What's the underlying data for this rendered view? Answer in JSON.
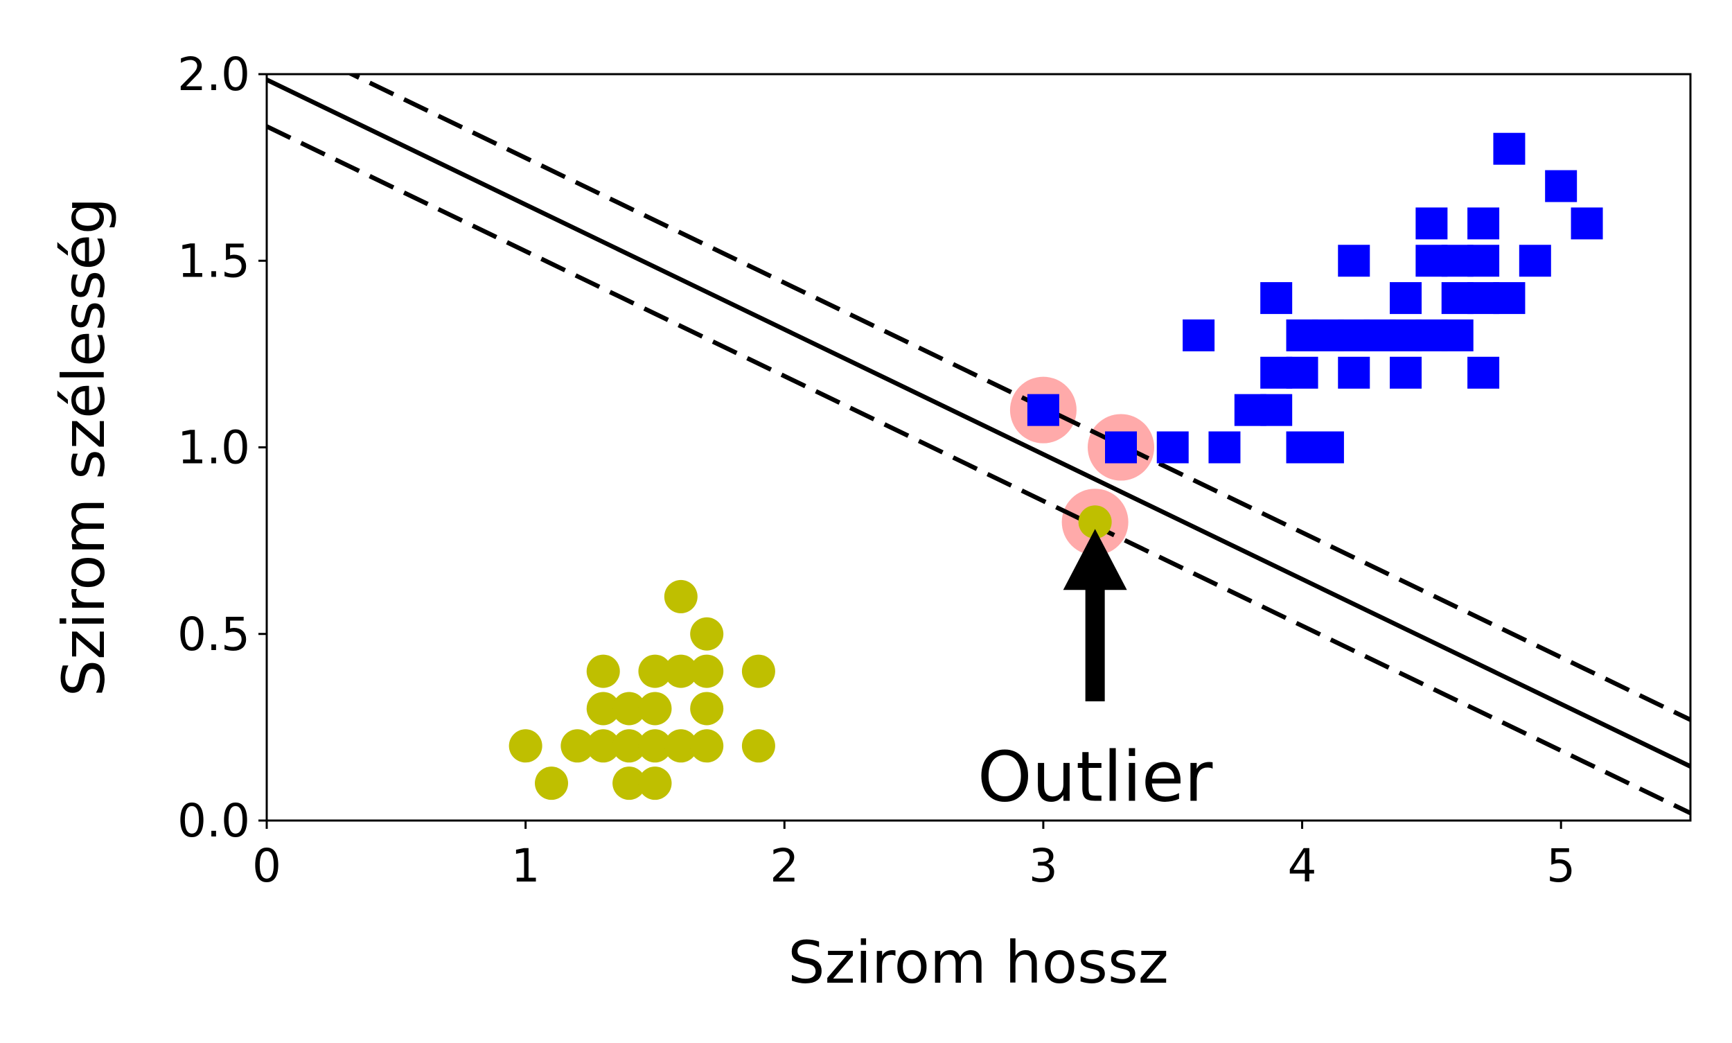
{
  "chart_data": {
    "type": "scatter",
    "xlabel": "Szirom hossz",
    "ylabel": "Szirom szélesség",
    "xlim": [
      0,
      5.5
    ],
    "ylim": [
      0,
      2.0
    ],
    "x_ticks": [
      {
        "value": 0,
        "label": "0"
      },
      {
        "value": 1,
        "label": "1"
      },
      {
        "value": 2,
        "label": "2"
      },
      {
        "value": 3,
        "label": "3"
      },
      {
        "value": 4,
        "label": "4"
      },
      {
        "value": 5,
        "label": "5"
      }
    ],
    "y_ticks": [
      {
        "value": 0.0,
        "label": "0.0"
      },
      {
        "value": 0.5,
        "label": "0.5"
      },
      {
        "value": 1.0,
        "label": "1.0"
      },
      {
        "value": 1.5,
        "label": "1.5"
      },
      {
        "value": 2.0,
        "label": "2.0"
      }
    ],
    "grid": false,
    "series": [
      {
        "marker": "circle",
        "color": "#bfbf00",
        "points": [
          [
            1.0,
            0.2
          ],
          [
            1.1,
            0.1
          ],
          [
            1.2,
            0.2
          ],
          [
            1.3,
            0.2
          ],
          [
            1.3,
            0.3
          ],
          [
            1.3,
            0.4
          ],
          [
            1.4,
            0.1
          ],
          [
            1.4,
            0.2
          ],
          [
            1.4,
            0.3
          ],
          [
            1.5,
            0.1
          ],
          [
            1.5,
            0.2
          ],
          [
            1.5,
            0.3
          ],
          [
            1.5,
            0.4
          ],
          [
            1.6,
            0.2
          ],
          [
            1.6,
            0.4
          ],
          [
            1.6,
            0.6
          ],
          [
            1.7,
            0.2
          ],
          [
            1.7,
            0.3
          ],
          [
            1.7,
            0.4
          ],
          [
            1.7,
            0.5
          ],
          [
            1.9,
            0.2
          ],
          [
            1.9,
            0.4
          ],
          [
            3.2,
            0.8
          ]
        ]
      },
      {
        "marker": "square",
        "color": "#0000ff",
        "points": [
          [
            3.0,
            1.1
          ],
          [
            3.3,
            1.0
          ],
          [
            3.5,
            1.0
          ],
          [
            3.6,
            1.3
          ],
          [
            3.7,
            1.0
          ],
          [
            3.8,
            1.1
          ],
          [
            3.9,
            1.1
          ],
          [
            3.9,
            1.2
          ],
          [
            3.9,
            1.4
          ],
          [
            4.0,
            1.0
          ],
          [
            4.0,
            1.2
          ],
          [
            4.0,
            1.3
          ],
          [
            4.1,
            1.0
          ],
          [
            4.1,
            1.3
          ],
          [
            4.2,
            1.2
          ],
          [
            4.2,
            1.3
          ],
          [
            4.2,
            1.5
          ],
          [
            4.3,
            1.3
          ],
          [
            4.4,
            1.2
          ],
          [
            4.4,
            1.3
          ],
          [
            4.4,
            1.4
          ],
          [
            4.5,
            1.3
          ],
          [
            4.5,
            1.5
          ],
          [
            4.5,
            1.6
          ],
          [
            4.6,
            1.3
          ],
          [
            4.6,
            1.4
          ],
          [
            4.6,
            1.5
          ],
          [
            4.7,
            1.2
          ],
          [
            4.7,
            1.4
          ],
          [
            4.7,
            1.5
          ],
          [
            4.7,
            1.6
          ],
          [
            4.8,
            1.4
          ],
          [
            4.8,
            1.8
          ],
          [
            4.9,
            1.5
          ],
          [
            5.0,
            1.7
          ],
          [
            5.1,
            1.6
          ]
        ]
      }
    ],
    "highlighted_points": [
      [
        3.0,
        1.1
      ],
      [
        3.3,
        1.0
      ],
      [
        3.2,
        0.8
      ]
    ],
    "highlight_color": "#ffaaaa",
    "decision_boundary": {
      "color": "#000000",
      "line": [
        [
          0,
          1.985
        ],
        [
          5.5,
          0.145
        ]
      ],
      "margin_upper": [
        [
          0,
          2.11
        ],
        [
          5.5,
          0.27
        ]
      ],
      "margin_lower": [
        [
          0,
          1.86
        ],
        [
          5.5,
          0.02
        ]
      ]
    },
    "annotation": {
      "text": "Outlier",
      "point": [
        3.2,
        0.8
      ],
      "text_pos": [
        3.2,
        0.12
      ]
    }
  }
}
